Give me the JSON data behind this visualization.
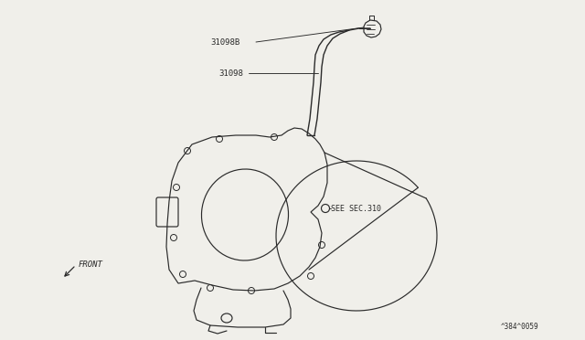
{
  "bg_color": "#f0efea",
  "line_color": "#2a2a2a",
  "label_31098B": "31098B",
  "label_31098": "31098",
  "label_sec310": "SEE SEC.310",
  "label_front": "FRONT",
  "label_part_num": "^384^0059",
  "font_size_labels": 6.5,
  "font_size_part": 5.5
}
